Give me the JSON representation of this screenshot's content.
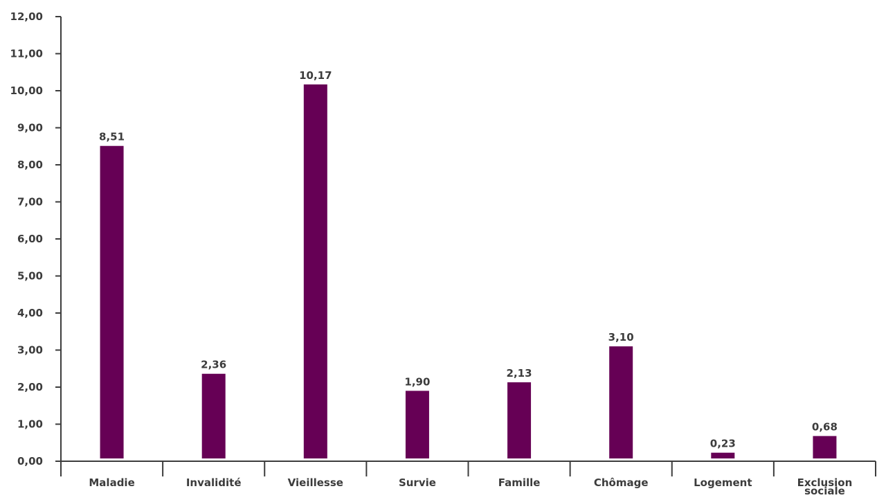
{
  "chart_data": {
    "type": "bar",
    "categories": [
      [
        "Maladie"
      ],
      [
        "Invalidité"
      ],
      [
        "Vieillesse"
      ],
      [
        "Survie"
      ],
      [
        "Famille"
      ],
      [
        "Chômage"
      ],
      [
        "Logement"
      ],
      [
        "Exclusion",
        "sociale"
      ]
    ],
    "values": [
      8.51,
      2.36,
      10.17,
      1.9,
      2.13,
      3.1,
      0.23,
      0.68
    ],
    "data_labels": [
      "8,51",
      "2,36",
      "10,17",
      "1,90",
      "2,13",
      "3,10",
      "0,23",
      "0,68"
    ],
    "y_ticks": [
      {
        "value": 0,
        "label": "0,00"
      },
      {
        "value": 1,
        "label": "1,00"
      },
      {
        "value": 2,
        "label": "2,00"
      },
      {
        "value": 3,
        "label": "3,00"
      },
      {
        "value": 4,
        "label": "4,00"
      },
      {
        "value": 5,
        "label": "5,00"
      },
      {
        "value": 6,
        "label": "6,00"
      },
      {
        "value": 7,
        "label": "7,00"
      },
      {
        "value": 8,
        "label": "8,00"
      },
      {
        "value": 9,
        "label": "9,00"
      },
      {
        "value": 10,
        "label": "10,00"
      },
      {
        "value": 11,
        "label": "11,00"
      },
      {
        "value": 12,
        "label": "12,00"
      }
    ],
    "ylim": [
      0,
      12
    ],
    "title": "",
    "xlabel": "",
    "ylabel": "",
    "grid": false,
    "legend": "none",
    "bar_color": "#660055",
    "axis_color": "#3c3c3c"
  }
}
